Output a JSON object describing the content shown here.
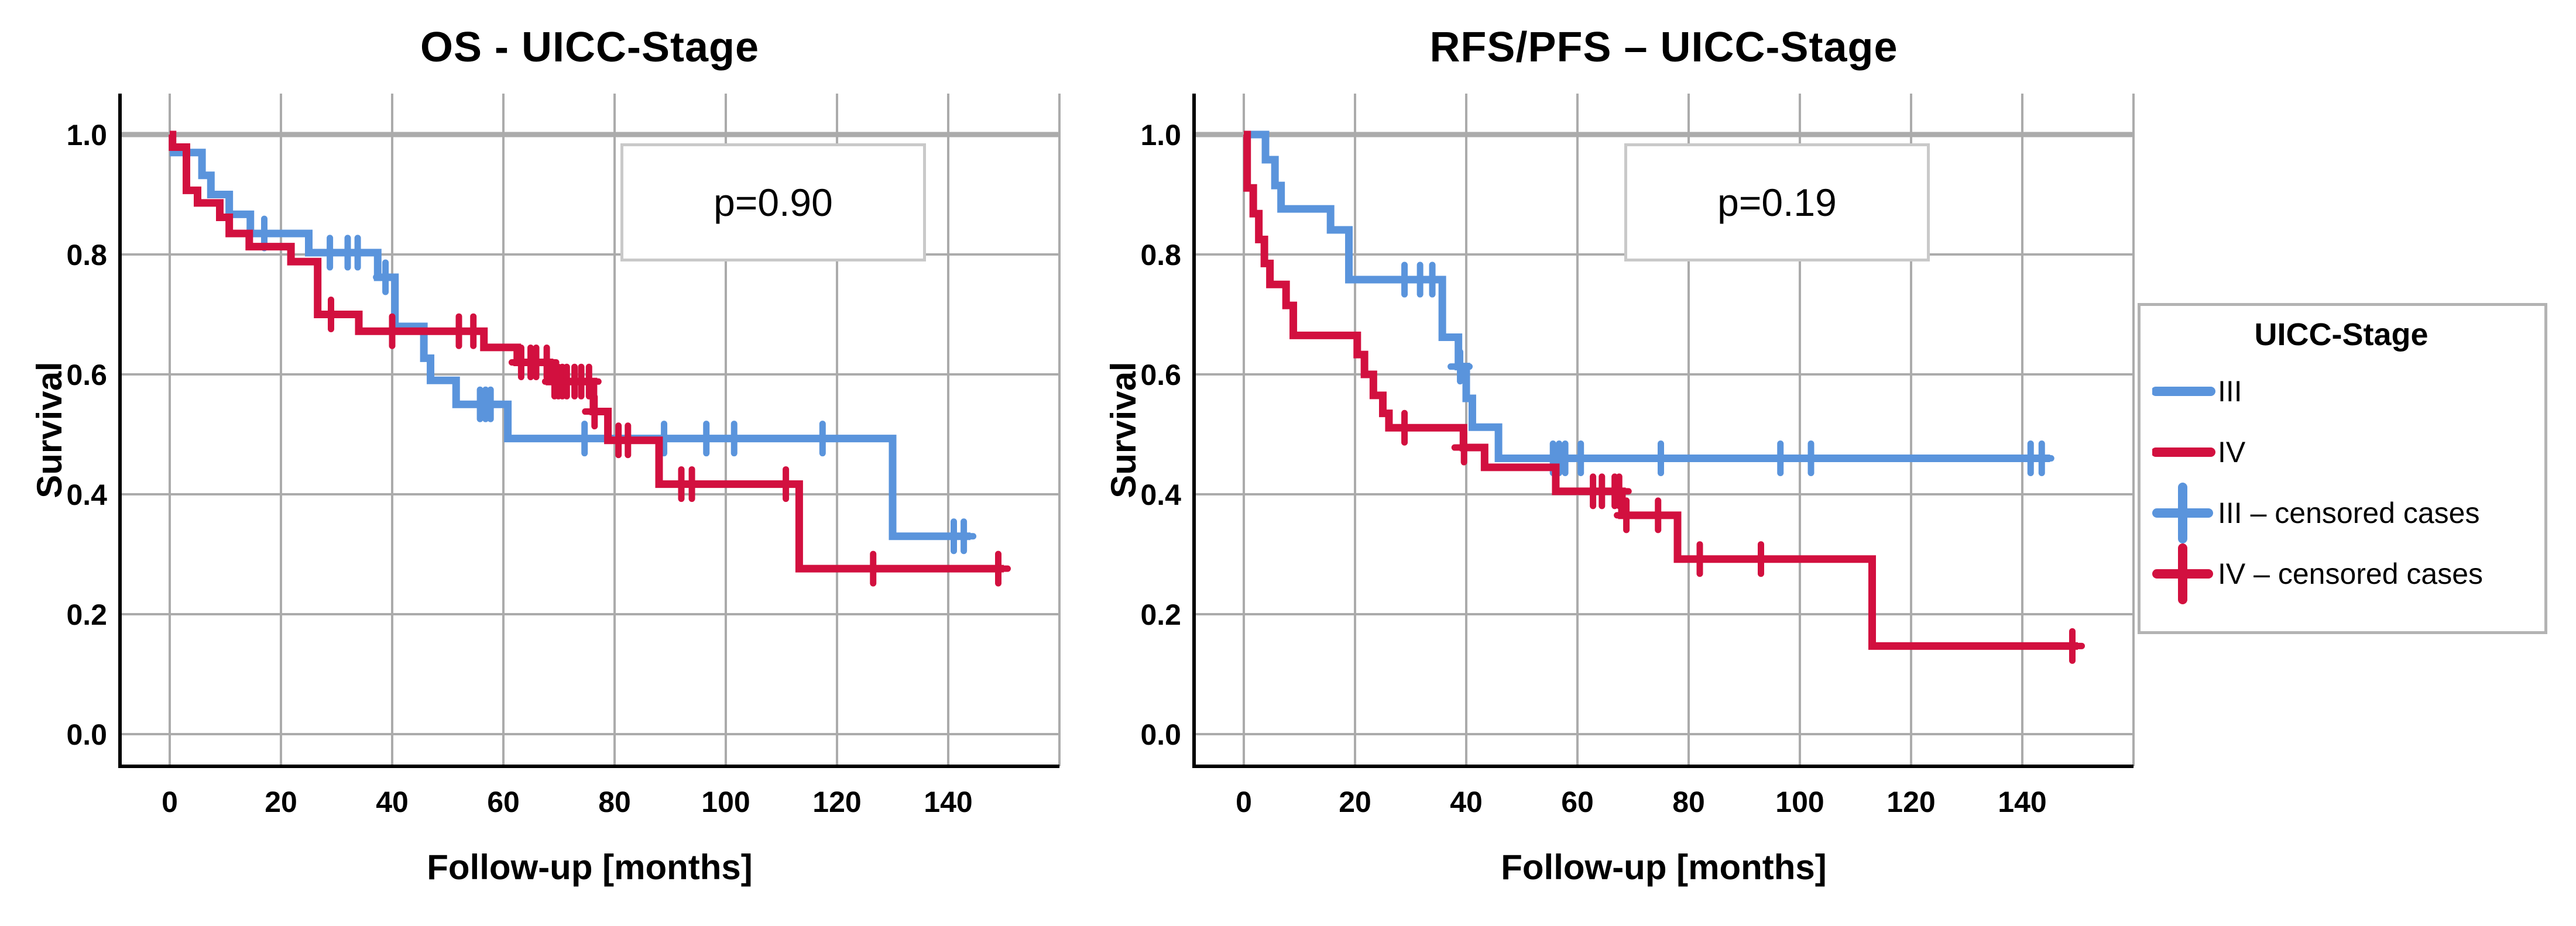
{
  "figure": {
    "background": "#ffffff",
    "colors": {
      "stage_iii": "#5A94DC",
      "stage_iv": "#D2103F",
      "gridline": "#ababab",
      "axis": "#000000",
      "pbox_border": "#c9c9c9",
      "legend_border": "#b3b3b3"
    }
  },
  "chart_data": [
    {
      "type": "line",
      "subtype": "kaplan-meier-step",
      "title": "OS - UICC-Stage",
      "p_label": "p=0.90",
      "xlabel": "Follow-up [months]",
      "ylabel": "Survival",
      "xticks": [
        0,
        20,
        40,
        60,
        80,
        100,
        120,
        140
      ],
      "yticks": [
        "1.0",
        "0.8",
        "0.6",
        "0.4",
        "0.2",
        "0.0"
      ],
      "xlim": [
        -9,
        160
      ],
      "ylim": [
        -0.055,
        1.068
      ],
      "grid": true,
      "series": [
        {
          "name": "III",
          "color": "#5A94DC",
          "steps": [
            [
              0,
              0.97
            ],
            [
              5.8,
              0.932
            ],
            [
              7.4,
              0.9
            ],
            [
              10.7,
              0.867
            ],
            [
              14.5,
              0.835
            ],
            [
              25,
              0.803
            ],
            [
              37.4,
              0.762
            ],
            [
              40.5,
              0.68
            ],
            [
              45.7,
              0.627
            ],
            [
              46.9,
              0.59
            ],
            [
              51.5,
              0.55
            ],
            [
              60.8,
              0.493
            ],
            [
              130,
              0.33
            ]
          ],
          "end": 144,
          "censors": [
            17,
            28.8,
            32,
            33.8,
            38.8,
            55.8,
            56.8,
            57.7,
            74.6,
            88.9,
            96.5,
            101.5,
            117.4,
            141,
            142.8
          ]
        },
        {
          "name": "IV",
          "color": "#D2103F",
          "steps": [
            [
              0,
              1.0
            ],
            [
              0.5,
              0.979
            ],
            [
              3,
              0.907
            ],
            [
              5,
              0.886
            ],
            [
              9,
              0.862
            ],
            [
              10.7,
              0.835
            ],
            [
              14.3,
              0.813
            ],
            [
              21.8,
              0.788
            ],
            [
              26.6,
              0.7
            ],
            [
              34,
              0.672
            ],
            [
              56.5,
              0.645
            ],
            [
              62.5,
              0.62
            ],
            [
              68.3,
              0.588
            ],
            [
              76.2,
              0.538
            ],
            [
              78.8,
              0.49
            ],
            [
              88,
              0.417
            ],
            [
              113.2,
              0.276
            ]
          ],
          "end": 150,
          "censors": [
            29,
            40,
            52,
            54.6,
            63.2,
            64.9,
            65.9,
            67.8,
            69.2,
            69.9,
            70.6,
            71.4,
            72.8,
            74,
            75.4,
            76.4,
            80.7,
            82.4,
            92,
            93.9,
            110.8,
            126.5,
            149
          ]
        }
      ]
    },
    {
      "type": "line",
      "subtype": "kaplan-meier-step",
      "title": "RFS/PFS – UICC-Stage",
      "p_label": "p=0.19",
      "xlabel": "Follow-up [months]",
      "ylabel": "Survival",
      "xticks": [
        0,
        20,
        40,
        60,
        80,
        100,
        120,
        140
      ],
      "yticks": [
        "1.0",
        "0.8",
        "0.6",
        "0.4",
        "0.2",
        "0.0"
      ],
      "xlim": [
        -9,
        160
      ],
      "ylim": [
        -0.055,
        1.068
      ],
      "grid": true,
      "series": [
        {
          "name": "III",
          "color": "#5A94DC",
          "steps": [
            [
              0,
              1.0
            ],
            [
              3.9,
              0.958
            ],
            [
              5.6,
              0.915
            ],
            [
              6.7,
              0.876
            ],
            [
              15.6,
              0.841
            ],
            [
              18.9,
              0.758
            ],
            [
              35.7,
              0.662
            ],
            [
              38.6,
              0.613
            ],
            [
              40,
              0.56
            ],
            [
              41.1,
              0.512
            ],
            [
              45.8,
              0.46
            ]
          ],
          "end": 145,
          "censors": [
            28.9,
            31.7,
            33.9,
            38.9,
            55.6,
            56.7,
            57.8,
            60.6,
            75,
            96.5,
            102,
            141.5,
            143.5
          ]
        },
        {
          "name": "IV",
          "color": "#D2103F",
          "steps": [
            [
              0,
              1.0
            ],
            [
              0.6,
              0.911
            ],
            [
              1.7,
              0.868
            ],
            [
              2.7,
              0.825
            ],
            [
              3.7,
              0.785
            ],
            [
              4.7,
              0.75
            ],
            [
              7.6,
              0.715
            ],
            [
              8.9,
              0.665
            ],
            [
              20.4,
              0.633
            ],
            [
              21.7,
              0.6
            ],
            [
              23.3,
              0.565
            ],
            [
              25,
              0.535
            ],
            [
              26.1,
              0.511
            ],
            [
              39.5,
              0.478
            ],
            [
              43.3,
              0.445
            ],
            [
              56.1,
              0.405
            ],
            [
              68,
              0.365
            ],
            [
              78,
              0.292
            ],
            [
              113,
              0.147
            ]
          ],
          "end": 150,
          "censors": [
            28.9,
            39.6,
            62.8,
            64.4,
            66.7,
            67.5,
            68.8,
            74.5,
            82,
            93,
            149
          ]
        }
      ]
    }
  ],
  "legend": {
    "title": "UICC-Stage",
    "position": "right",
    "items": [
      {
        "label": "III",
        "color": "#5A94DC",
        "marker": "line"
      },
      {
        "label": "IV",
        "color": "#D2103F",
        "marker": "line"
      },
      {
        "label": "III – censored cases",
        "color": "#5A94DC",
        "marker": "plus"
      },
      {
        "label": "IV – censored cases",
        "color": "#D2103F",
        "marker": "plus"
      }
    ]
  }
}
